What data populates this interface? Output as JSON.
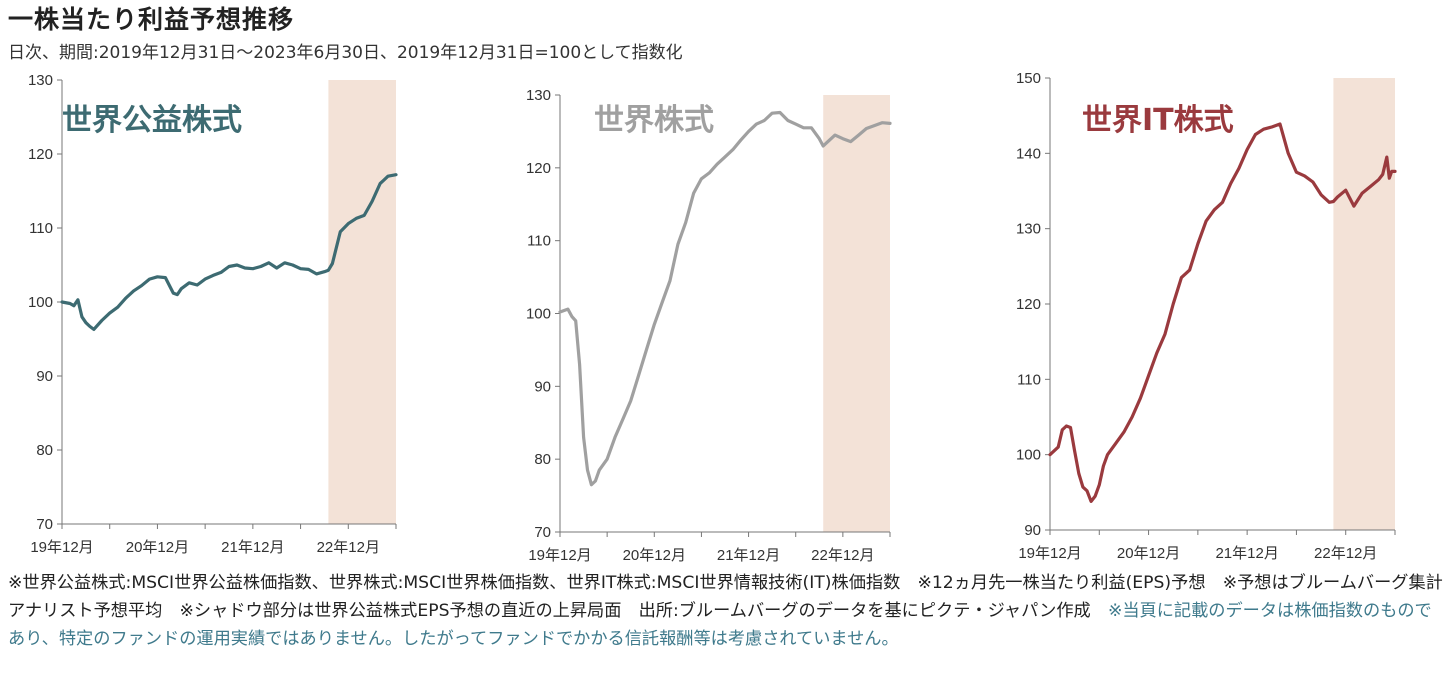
{
  "page": {
    "title": "一株当たり利益予想推移",
    "subtitle": "日次、期間:2019年12月31日～2023年6月30日、2019年12月31日=100として指数化"
  },
  "notes": {
    "main": "※世界公益株式:MSCI世界公益株価指数、世界株式:MSCI世界株価指数、世界IT株式:MSCI世界情報技術(IT)株価指数　※12ヵ月先一株当たり利益(EPS)予想　※予想はブルームバーグ集計アナリスト予想平均　※シャドウ部分は世界公益株式EPS予想の直近の上昇局面　出所:ブルームバーグのデータを基にピクテ・ジャパン作成",
    "highlight": "※当頁に記載のデータは株価指数のものであり、特定のファンドの運用実績ではありません。したがってファンドでかかる信託報酬等は考慮されていません。"
  },
  "chart_data": [
    {
      "type": "line",
      "title": "世界公益株式",
      "color": "#3d6b72",
      "ylim": [
        70,
        130
      ],
      "yticks": [
        70,
        80,
        90,
        100,
        110,
        120,
        130
      ],
      "xlim": [
        0,
        42
      ],
      "xticks": [
        {
          "x": 0,
          "label": "19年12月"
        },
        {
          "x": 12,
          "label": "20年12月"
        },
        {
          "x": 24,
          "label": "21年12月"
        },
        {
          "x": 36,
          "label": "22年12月"
        }
      ],
      "shade": [
        33.5,
        42
      ],
      "shade_color": "#f3e2d7",
      "x": [
        0,
        1,
        1.5,
        2,
        2.5,
        3,
        3.5,
        4,
        5,
        6,
        7,
        8,
        9,
        10,
        11,
        12,
        13,
        14,
        14.5,
        15,
        16,
        17,
        18,
        19,
        20,
        21,
        22,
        23,
        24,
        25,
        26,
        27,
        28,
        29,
        30,
        31,
        32,
        33,
        33.5,
        34,
        35,
        36,
        37,
        38,
        39,
        40,
        41,
        42
      ],
      "values": [
        100,
        99.8,
        99.5,
        100.3,
        98,
        97.2,
        96.7,
        96.3,
        97.5,
        98.5,
        99.3,
        100.5,
        101.5,
        102.2,
        103.1,
        103.4,
        103.3,
        101.2,
        101,
        101.8,
        102.6,
        102.3,
        103.1,
        103.6,
        104,
        104.8,
        105,
        104.6,
        104.5,
        104.8,
        105.3,
        104.6,
        105.3,
        105,
        104.5,
        104.4,
        103.8,
        104.1,
        104.3,
        105.2,
        109.5,
        110.6,
        111.3,
        111.7,
        113.6,
        116,
        117,
        117.2
      ]
    },
    {
      "type": "line",
      "title": "世界株式",
      "color": "#a0a0a0",
      "ylim": [
        70,
        130
      ],
      "yticks": [
        70,
        80,
        90,
        100,
        110,
        120,
        130
      ],
      "xlim": [
        0,
        42
      ],
      "xticks": [
        {
          "x": 0,
          "label": "19年12月"
        },
        {
          "x": 12,
          "label": "20年12月"
        },
        {
          "x": 24,
          "label": "21年12月"
        },
        {
          "x": 36,
          "label": "22年12月"
        }
      ],
      "shade": [
        33.5,
        42
      ],
      "shade_color": "#f3e2d7",
      "x": [
        0,
        1,
        1.5,
        2,
        2.5,
        3,
        3.5,
        4,
        4.5,
        5,
        6,
        7,
        8,
        9,
        10,
        11,
        12,
        13,
        14,
        15,
        16,
        17,
        18,
        19,
        20,
        21,
        22,
        23,
        24,
        25,
        26,
        27,
        28,
        29,
        30,
        31,
        32,
        33,
        33.5,
        34,
        35,
        36,
        37,
        38,
        39,
        40,
        41,
        42
      ],
      "values": [
        100.2,
        100.6,
        99.6,
        99,
        93,
        83,
        78.5,
        76.5,
        77,
        78.5,
        80,
        83,
        85.5,
        88,
        91.5,
        95,
        98.5,
        101.5,
        104.5,
        109.5,
        112.5,
        116.5,
        118.5,
        119.3,
        120.5,
        121.5,
        122.5,
        123.8,
        125,
        126,
        126.5,
        127.5,
        127.6,
        126.5,
        126,
        125.5,
        125.5,
        124,
        123,
        123.5,
        124.5,
        124,
        123.6,
        124.5,
        125.4,
        125.8,
        126.2,
        126.1
      ]
    },
    {
      "type": "line",
      "title": "世界IT株式",
      "color": "#9a3a3e",
      "ylim": [
        90,
        150
      ],
      "yticks": [
        90,
        100,
        110,
        120,
        130,
        140,
        150
      ],
      "xlim": [
        0,
        42
      ],
      "xticks": [
        {
          "x": 0,
          "label": "19年12月"
        },
        {
          "x": 12,
          "label": "20年12月"
        },
        {
          "x": 24,
          "label": "21年12月"
        },
        {
          "x": 36,
          "label": "22年12月"
        }
      ],
      "shade": [
        34.5,
        42
      ],
      "shade_color": "#f3e2d7",
      "x": [
        0,
        1,
        1.5,
        2,
        2.5,
        3,
        3.5,
        4,
        4.5,
        5,
        5.5,
        6,
        6.5,
        7,
        8,
        9,
        10,
        11,
        12,
        13,
        14,
        15,
        16,
        17,
        18,
        19,
        20,
        21,
        22,
        23,
        24,
        25,
        26,
        27,
        28,
        29,
        30,
        31,
        32,
        33,
        34,
        34.5,
        35,
        36,
        37,
        38,
        39,
        40,
        40.5,
        41,
        41.3,
        41.6,
        42
      ],
      "values": [
        100,
        101,
        103.3,
        103.8,
        103.6,
        100.5,
        97.5,
        95.7,
        95.2,
        93.8,
        94.5,
        96,
        98.5,
        100,
        101.5,
        103,
        105,
        107.5,
        110.5,
        113.5,
        116,
        120,
        123.5,
        124.5,
        128,
        131,
        132.5,
        133.5,
        136,
        138,
        140.5,
        142.5,
        143.2,
        143.5,
        143.9,
        140,
        137.5,
        137,
        136.2,
        134.5,
        133.5,
        133.6,
        134.2,
        135.1,
        133,
        134.7,
        135.6,
        136.5,
        137.2,
        139.5,
        136.7,
        137.6,
        137.6
      ]
    }
  ]
}
